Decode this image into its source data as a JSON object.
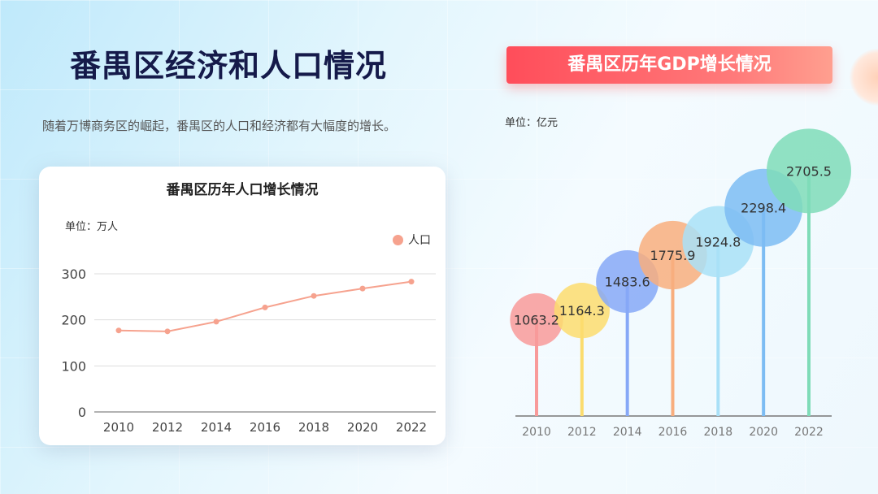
{
  "page": {
    "title": "番禺区经济和人口情况",
    "description": "随着万博商务区的崛起，番禺区的人口和经济都有大幅度的增长。"
  },
  "chart_data": [
    {
      "type": "line",
      "title": "番禺区历年人口增长情况",
      "unit": "单位：万人",
      "categories": [
        "2010",
        "2012",
        "2014",
        "2016",
        "2018",
        "2020",
        "2022"
      ],
      "series": [
        {
          "name": "人口",
          "values": [
            177,
            175,
            196,
            227,
            252,
            268,
            283
          ],
          "color": "#f6a28e"
        }
      ],
      "ylim": [
        0,
        300
      ],
      "yticks": [
        0,
        100,
        200,
        300
      ],
      "grid": true,
      "legend": "top-right"
    },
    {
      "type": "bubble-lollipop",
      "title": "番禺区历年GDP增长情况",
      "unit": "单位：亿元",
      "categories": [
        "2010",
        "2012",
        "2014",
        "2016",
        "2018",
        "2020",
        "2022"
      ],
      "values": [
        1063.2,
        1164.3,
        1483.6,
        1775.9,
        1924.8,
        2298.4,
        2705.5
      ],
      "colors": [
        "#f89a9a",
        "#fbdc6e",
        "#86a8f7",
        "#f8ae7e",
        "#a9e0f7",
        "#7cbcf3",
        "#7fdcb8"
      ],
      "grid": false
    }
  ]
}
